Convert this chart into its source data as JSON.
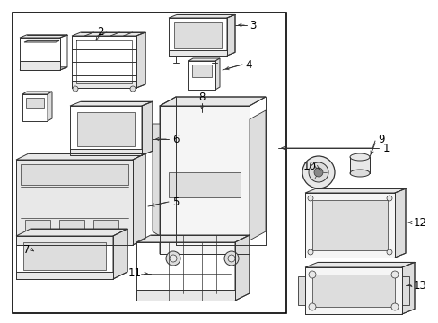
{
  "bg": "#ffffff",
  "lc": "#333333",
  "fc": "#f5f5f5",
  "fc2": "#e8e8e8",
  "fc3": "#dddddd",
  "border_lw": 1.0,
  "fig_w": 4.89,
  "fig_h": 3.6,
  "dpi": 100
}
